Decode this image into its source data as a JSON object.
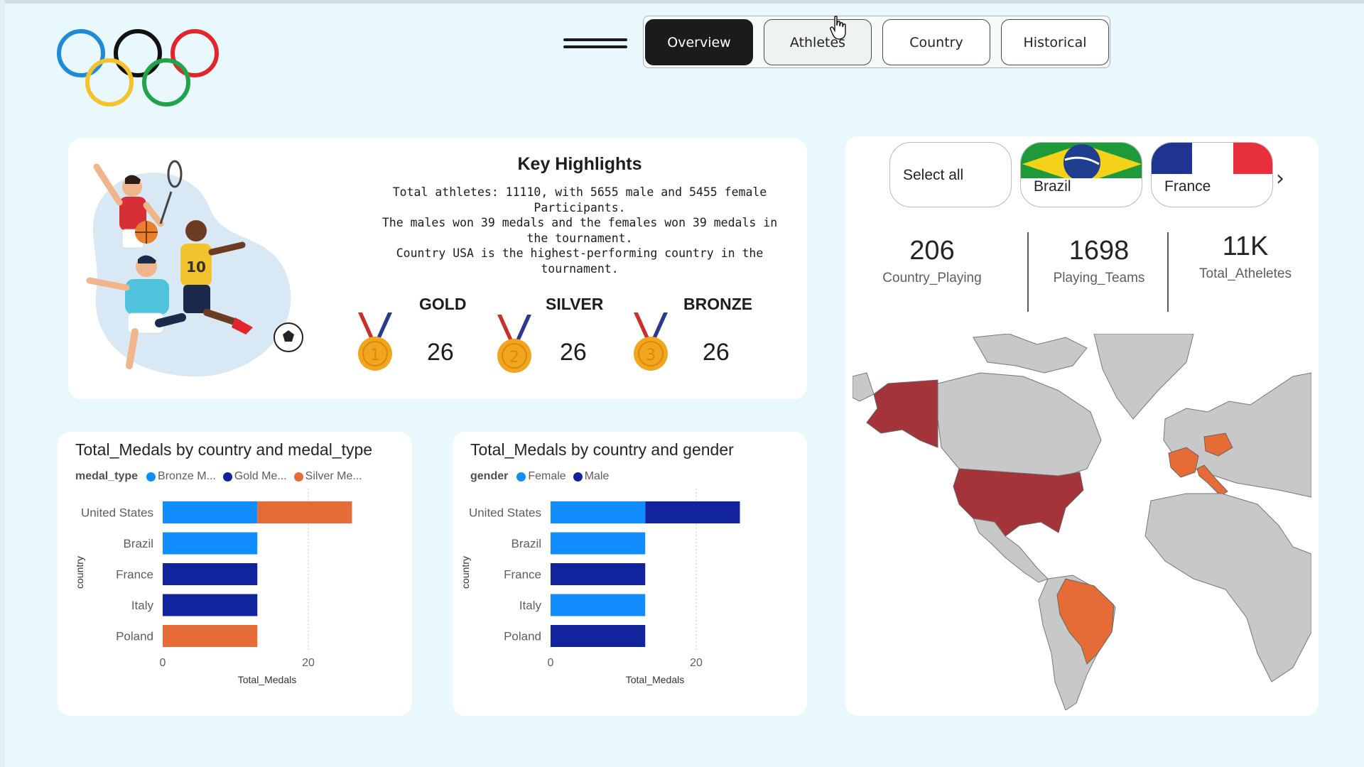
{
  "nav": {
    "tabs": [
      "Overview",
      "Athletes",
      "Country",
      "Historical"
    ],
    "active": "Overview"
  },
  "highlights": {
    "title": "Key Highlights",
    "lines": [
      "Total athletes: 11110, with 5655 male and 5455 female",
      "Participants.",
      "The males won 39 medals and the females won 39 medals in",
      "the tournament.",
      "Country USA is the highest-performing country in the tournament."
    ],
    "medals": [
      {
        "label": "GOLD",
        "value": "26",
        "num": "1"
      },
      {
        "label": "SILVER",
        "value": "26",
        "num": "2"
      },
      {
        "label": "BRONZE",
        "value": "26",
        "num": "3"
      }
    ]
  },
  "chart_data": [
    {
      "type": "bar",
      "orientation": "horizontal",
      "stacked": true,
      "title": "Total_Medals by country and medal_type",
      "legend_title": "medal_type",
      "legend_labels": [
        "Bronze M...",
        "Gold Me...",
        "Silver Me..."
      ],
      "categories": [
        "United States",
        "Brazil",
        "France",
        "Italy",
        "Poland"
      ],
      "series": [
        {
          "name": "Bronze Medal",
          "color": "#118dff",
          "values": [
            13,
            13,
            0,
            0,
            0
          ]
        },
        {
          "name": "Gold Medal",
          "color": "#12239e",
          "values": [
            0,
            0,
            13,
            13,
            0
          ]
        },
        {
          "name": "Silver Medal",
          "color": "#e66c37",
          "values": [
            13,
            0,
            0,
            0,
            13
          ]
        }
      ],
      "xlabel": "Total_Medals",
      "ylabel": "country",
      "xticks": [
        0,
        20
      ],
      "xlim": [
        0,
        30
      ]
    },
    {
      "type": "bar",
      "orientation": "horizontal",
      "stacked": true,
      "title": "Total_Medals by country and gender",
      "legend_title": "gender",
      "legend_labels": [
        "Female",
        "Male"
      ],
      "categories": [
        "United States",
        "Brazil",
        "France",
        "Italy",
        "Poland"
      ],
      "series": [
        {
          "name": "Female",
          "color": "#118dff",
          "values": [
            13,
            13,
            0,
            13,
            0
          ]
        },
        {
          "name": "Male",
          "color": "#12239e",
          "values": [
            13,
            0,
            13,
            0,
            13
          ]
        }
      ],
      "xlabel": "Total_Medals",
      "ylabel": "country",
      "xticks": [
        0,
        20
      ],
      "xlim": [
        0,
        30
      ]
    }
  ],
  "slicer": {
    "items": [
      "Select all",
      "Brazil",
      "France"
    ]
  },
  "kpis": [
    {
      "value": "206",
      "caption": "Country_Playing"
    },
    {
      "value": "1698",
      "caption": "Playing_Teams"
    },
    {
      "value": "11K",
      "caption": "Total_Atheletes"
    }
  ],
  "map": {
    "highlight_colors": {
      "dark_red": "#a4343a",
      "orange": "#e66c37",
      "gray": "#c8c8c8"
    }
  },
  "colors": {
    "background": "#e8f8fd",
    "bronze_female": "#118dff",
    "gold_male": "#12239e",
    "silver": "#e66c37"
  }
}
